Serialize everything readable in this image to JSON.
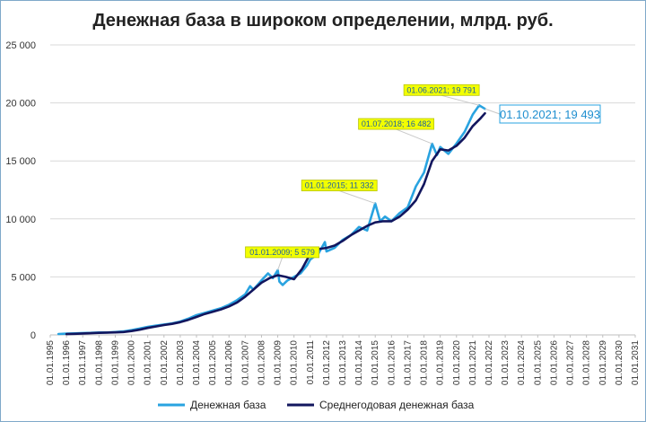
{
  "chart_data": {
    "type": "line",
    "title": "Денежная база в широком определении, млрд. руб.",
    "xlabel": "",
    "ylabel": "",
    "ylim": [
      0,
      25000
    ],
    "y_ticks": [
      "0",
      "5 000",
      "10 000",
      "15 000",
      "20 000",
      "25 000"
    ],
    "x_ticks": [
      "01.01.1995",
      "01.01.1996",
      "01.01.1997",
      "01.01.1998",
      "01.01.1999",
      "01.01.2000",
      "01.01.2001",
      "01.01.2002",
      "01.01.2003",
      "01.01.2004",
      "01.01.2005",
      "01.01.2006",
      "01.01.2007",
      "01.01.2008",
      "01.01.2009",
      "01.01.2010",
      "01.01.2011",
      "01.01.2012",
      "01.01.2013",
      "01.01.2014",
      "01.01.2015",
      "01.01.2016",
      "01.01.2017",
      "01.01.2018",
      "01.01.2019",
      "01.01.2020",
      "01.01.2021",
      "01.01.2022",
      "01.01.2023",
      "01.01.2024",
      "01.01.2025",
      "01.01.2026",
      "01.01.2027",
      "01.01.2028",
      "01.01.2029",
      "01.01.2030",
      "01.01.2031"
    ],
    "grid": "horizontal",
    "legend_position": "bottom",
    "series": [
      {
        "name": "Денежная база",
        "color": "#29a3e0",
        "x": [
          1995.5,
          1996.0,
          1996.5,
          1997.0,
          1997.5,
          1998.0,
          1998.5,
          1999.0,
          1999.5,
          2000.0,
          2000.5,
          2001.0,
          2001.5,
          2002.0,
          2002.5,
          2003.0,
          2003.5,
          2004.0,
          2004.5,
          2005.0,
          2005.5,
          2006.0,
          2006.5,
          2007.0,
          2007.3,
          2007.5,
          2008.0,
          2008.4,
          2008.7,
          2009.0,
          2009.1,
          2009.3,
          2009.6,
          2010.0,
          2010.4,
          2010.8,
          2011.0,
          2011.5,
          2011.9,
          2012.0,
          2012.5,
          2013.0,
          2013.5,
          2014.0,
          2014.5,
          2015.0,
          2015.3,
          2015.6,
          2016.0,
          2016.5,
          2017.0,
          2017.5,
          2018.0,
          2018.5,
          2018.8,
          2019.0,
          2019.5,
          2020.0,
          2020.5,
          2021.0,
          2021.4,
          2021.75
        ],
        "y": [
          80,
          110,
          130,
          160,
          180,
          210,
          210,
          250,
          300,
          420,
          550,
          700,
          800,
          900,
          1000,
          1150,
          1400,
          1700,
          1900,
          2100,
          2300,
          2600,
          3000,
          3500,
          4200,
          3900,
          4700,
          5300,
          4900,
          5579,
          4600,
          4300,
          4700,
          5000,
          5300,
          6000,
          6500,
          7000,
          8000,
          7200,
          7500,
          8200,
          8600,
          9300,
          9000,
          11332,
          9800,
          10200,
          9800,
          10500,
          11000,
          12800,
          14000,
          16482,
          15500,
          16200,
          15600,
          16500,
          17500,
          19000,
          19791,
          19493
        ]
      },
      {
        "name": "Среднегодовая денежная база",
        "color": "#12165e",
        "x": [
          1996.0,
          1996.5,
          1997.0,
          1997.5,
          1998.0,
          1998.5,
          1999.0,
          1999.5,
          2000.0,
          2000.5,
          2001.0,
          2001.5,
          2002.0,
          2002.5,
          2003.0,
          2003.5,
          2004.0,
          2004.5,
          2005.0,
          2005.5,
          2006.0,
          2006.5,
          2007.0,
          2007.5,
          2008.0,
          2008.5,
          2009.0,
          2009.5,
          2010.0,
          2010.5,
          2011.0,
          2011.5,
          2012.0,
          2012.5,
          2013.0,
          2013.5,
          2014.0,
          2014.5,
          2015.0,
          2015.5,
          2016.0,
          2016.5,
          2017.0,
          2017.5,
          2018.0,
          2018.5,
          2019.0,
          2019.5,
          2020.0,
          2020.5,
          2021.0,
          2021.5,
          2021.75
        ],
        "y": [
          70,
          90,
          120,
          150,
          180,
          200,
          220,
          250,
          330,
          450,
          600,
          730,
          850,
          950,
          1100,
          1300,
          1550,
          1800,
          2000,
          2200,
          2450,
          2800,
          3300,
          3900,
          4500,
          4900,
          5150,
          5000,
          4800,
          5700,
          7000,
          7400,
          7500,
          7700,
          8100,
          8600,
          9000,
          9400,
          9700,
          9800,
          9800,
          10200,
          10800,
          11600,
          13000,
          15000,
          16000,
          15900,
          16300,
          17000,
          18000,
          18700,
          19100
        ]
      }
    ],
    "annotations": [
      {
        "label": "01.01.2009;  5 579",
        "x": 2009.0,
        "y": 5579
      },
      {
        "label": "01.01.2015;  11 332",
        "x": 2015.0,
        "y": 11332
      },
      {
        "label": "01.07.2018;  16 482",
        "x": 2018.5,
        "y": 16482
      },
      {
        "label": "01.06.2021;  19 791",
        "x": 2021.4,
        "y": 19791
      },
      {
        "label": "01.10.2021;  19 493",
        "x": 2021.75,
        "y": 19493
      }
    ]
  }
}
